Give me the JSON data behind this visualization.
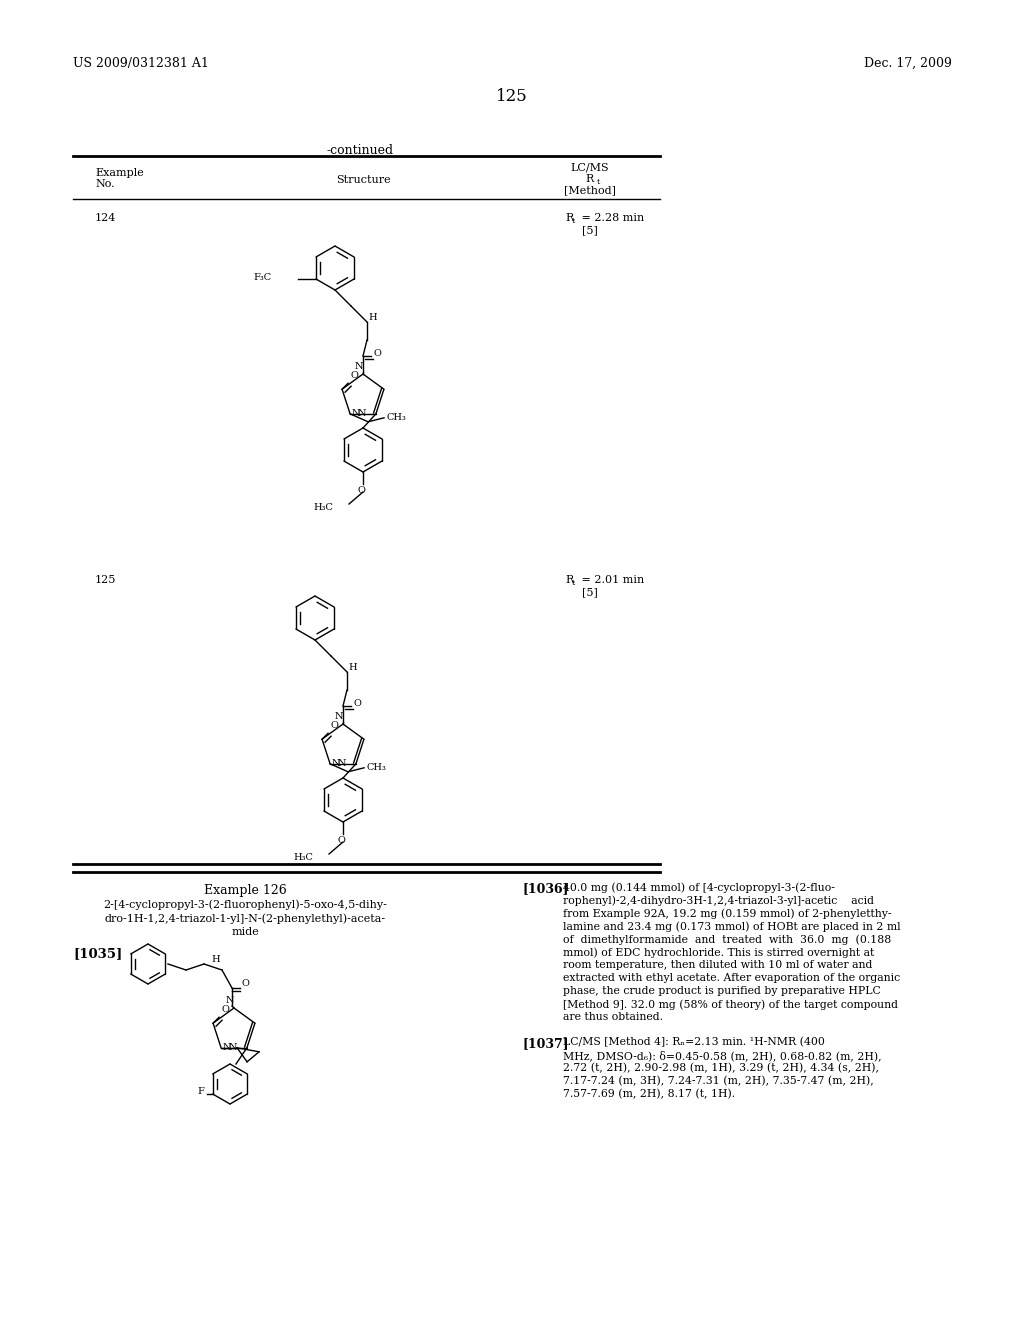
{
  "page_number": "125",
  "header_left": "US 2009/0312381 A1",
  "header_right": "Dec. 17, 2009",
  "continued_label": "-continued",
  "ex124_num": "124",
  "ex124_rt1": "R",
  "ex124_rt2": "t",
  "ex124_rt3": " = 2.28 min",
  "ex124_rt4": "[5]",
  "ex125_num": "125",
  "ex125_rt1": "R",
  "ex125_rt2": "t",
  "ex125_rt3": " = 2.01 min",
  "ex125_rt4": "[5]",
  "ex126_title": "Example 126",
  "ex126_name_line1": "2-[4-cyclopropyl-3-(2-fluorophenyl)-5-oxo-4,5-dihy-",
  "ex126_name_line2": "dro-1H-1,2,4-triazol-1-yl]-N-(2-phenylethyl)-aceta-",
  "ex126_name_line3": "mide",
  "ex126_para_label": "[1035]",
  "p1036_label": "[1036]",
  "p1036_lines": [
    "40.0 mg (0.144 mmol) of [4-cyclopropyl-3-(2-fluo-",
    "rophenyl)-2,4-dihydro-3H-1,2,4-triazol-3-yl]-acetic    acid",
    "from Example 92A, 19.2 mg (0.159 mmol) of 2-phenyletthy-",
    "lamine and 23.4 mg (0.173 mmol) of HOBt are placed in 2 ml",
    "of  dimethylformamide  and  treated  with  36.0  mg  (0.188",
    "mmol) of EDC hydrochloride. This is stirred overnight at",
    "room temperature, then diluted with 10 ml of water and",
    "extracted with ethyl acetate. After evaporation of the organic",
    "phase, the crude product is purified by preparative HPLC",
    "[Method 9]. 32.0 mg (58% of theory) of the target compound",
    "are thus obtained."
  ],
  "p1037_label": "[1037]",
  "p1037_lines": [
    "LC/MS [Method 4]: Rₙ=2.13 min. ¹H-NMR (400",
    "MHz, DMSO-d₆): δ=0.45-0.58 (m, 2H), 0.68-0.82 (m, 2H),",
    "2.72 (t, 2H), 2.90-2.98 (m, 1H), 3.29 (t, 2H), 4.34 (s, 2H),",
    "7.17-7.24 (m, 3H), 7.24-7.31 (m, 2H), 7.35-7.47 (m, 2H),",
    "7.57-7.69 (m, 2H), 8.17 (t, 1H)."
  ],
  "bg_color": "#ffffff",
  "text_color": "#000000",
  "lw": 1.0,
  "lw_thick": 2.0
}
